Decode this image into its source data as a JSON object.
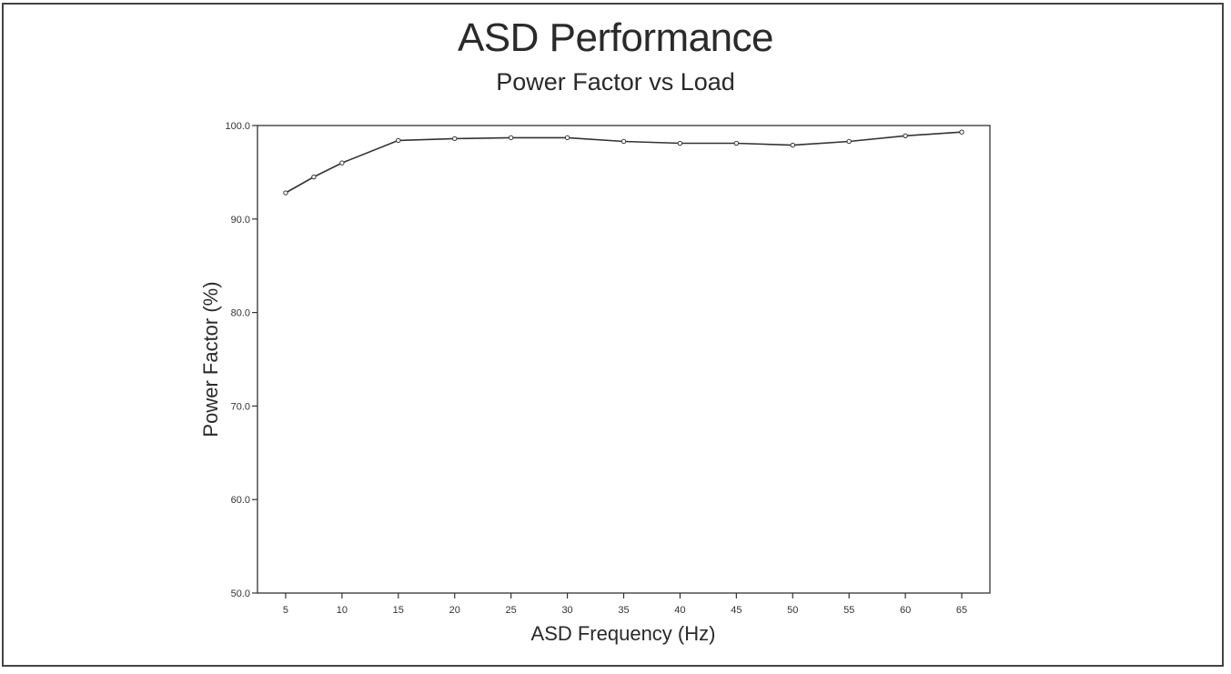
{
  "chart_data": {
    "type": "line",
    "title": "ASD Performance",
    "subtitle": "Power Factor vs Load",
    "xlabel": "ASD Frequency (Hz)",
    "ylabel": "Power Factor (%)",
    "x": [
      5,
      7.5,
      10,
      15,
      20,
      25,
      30,
      35,
      40,
      45,
      50,
      55,
      60,
      65
    ],
    "series": [
      {
        "values": [
          92.8,
          94.5,
          96.0,
          98.4,
          98.6,
          98.7,
          98.7,
          98.3,
          98.1,
          98.1,
          97.9,
          98.3,
          98.9,
          99.3
        ]
      }
    ],
    "xlim": [
      2.5,
      67.5
    ],
    "ylim": [
      50,
      100
    ],
    "xticks": [
      5,
      10,
      15,
      20,
      25,
      30,
      35,
      40,
      45,
      50,
      55,
      60,
      65
    ],
    "yticks": [
      50.0,
      60.0,
      70.0,
      80.0,
      90.0,
      100.0
    ],
    "ytick_labels": [
      "50.0",
      "60.0",
      "70.0",
      "80.0",
      "90.0",
      "100.0"
    ],
    "grid": false,
    "line_color": "#333333"
  }
}
